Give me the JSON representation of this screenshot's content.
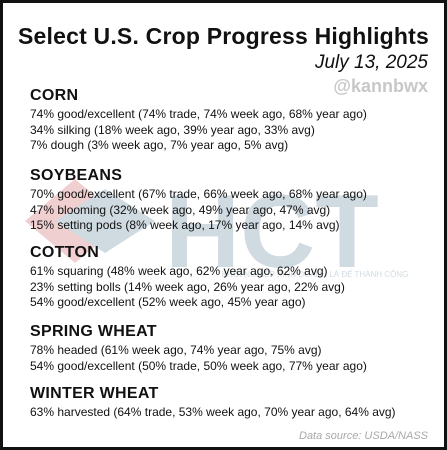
{
  "header": {
    "title": "Select U.S. Crop Progress Highlights",
    "date": "July 13, 2025",
    "handle": "@kannbwx"
  },
  "watermark": {
    "letters": "HCT",
    "tagline": "KHỞI NGHIỆP KINH DOANH LÀ ĐỂ THÀNH CÔNG"
  },
  "sections": [
    {
      "name": "CORN",
      "lines": [
        "74% good/excellent (74% trade, 74% week ago, 68% year ago)",
        "34% silking (18% week ago, 39% year ago, 33% avg)",
        "7% dough (3% week ago, 7% year ago, 5% avg)"
      ]
    },
    {
      "name": "SOYBEANS",
      "lines": [
        "70% good/excellent (67% trade, 66% week ago, 68% year ago)",
        "47% blooming (32% week ago, 49% year ago, 47% avg)",
        "15% setting pods (8% week ago, 17% year ago, 14% avg)"
      ]
    },
    {
      "name": "COTTON",
      "lines": [
        "61% squaring (48% week ago, 62% year ago, 62% avg)",
        "23% setting bolls (14% week ago, 26% year ago, 22% avg)",
        "54% good/excellent (52% week ago, 45% year ago)"
      ]
    },
    {
      "name": "SPRING WHEAT",
      "lines": [
        "78% headed (61% week ago, 74% year ago, 75% avg)",
        "54% good/excellent (50% trade, 50% week ago, 77% year ago)"
      ]
    },
    {
      "name": "WINTER WHEAT",
      "lines": [
        "63% harvested (64% trade, 53% week ago, 70% year ago, 64% avg)"
      ]
    }
  ],
  "footer": {
    "source": "Data source: USDA/NASS"
  },
  "colors": {
    "text": "#111111",
    "handle": "#c8c8c8",
    "source": "#a8a8a8",
    "watermark_blue": "#2c5d7c",
    "watermark_red": "#c0282d"
  }
}
